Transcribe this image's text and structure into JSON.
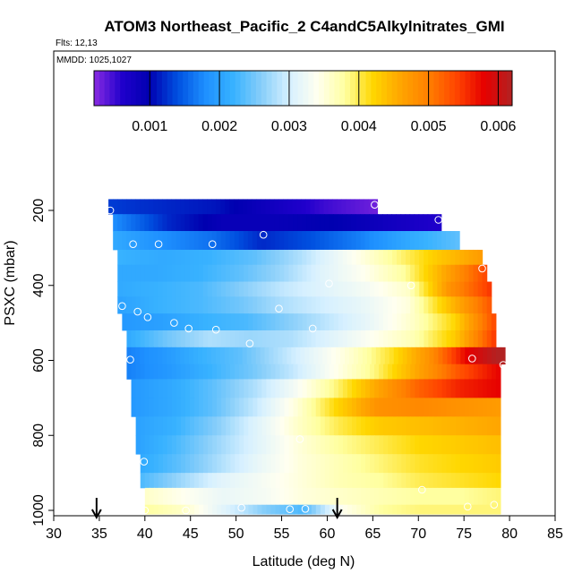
{
  "chart_data": {
    "type": "heatmap",
    "title": "ATOM3 Northeast_Pacific_2 C4andC5Alkylnitrates_GMI",
    "flights_label": "Flts: 12,13",
    "mmdd_label": "MMDD: 1025,1027",
    "xlabel": "Latitude (deg N)",
    "ylabel": "PSXC (mbar)",
    "xlim": [
      30,
      85
    ],
    "ylim": [
      1000,
      50
    ],
    "y_reversed": true,
    "x_ticks": [
      30,
      35,
      40,
      45,
      50,
      55,
      60,
      65,
      70,
      75,
      80,
      85
    ],
    "x_tick_labels": [
      "30",
      "35",
      "40",
      "45",
      "50",
      "55",
      "60",
      "65",
      "70",
      "75",
      "80",
      "85"
    ],
    "y_ticks": [
      200,
      400,
      600,
      800,
      1000
    ],
    "y_tick_labels": [
      "200",
      "400",
      "600",
      "800",
      "1000"
    ],
    "colorbar": {
      "min": 0.0002,
      "max": 0.0062,
      "ticks": [
        0.001,
        0.002,
        0.003,
        0.004,
        0.005,
        0.006
      ],
      "tick_labels": [
        "0.001",
        "0.002",
        "0.003",
        "0.004",
        "0.005",
        "0.006"
      ],
      "colors": [
        "#8a2be2",
        "#2000cc",
        "#0000b0",
        "#0050e0",
        "#1e90ff",
        "#38b2ff",
        "#87cefa",
        "#d6f0ff",
        "#fffff0",
        "#ffffa0",
        "#ffd700",
        "#ffa500",
        "#ff7f00",
        "#ff4500",
        "#e60000",
        "#b22222"
      ]
    },
    "rows": [
      {
        "p0": 170,
        "p1": 210,
        "lat0": 36,
        "lat1": 65.5,
        "values": [
          0.0013,
          0.0012,
          0.0011,
          0.0008,
          0.0005,
          0.0003
        ]
      },
      {
        "p0": 210,
        "p1": 255,
        "lat0": 36.5,
        "lat1": 72.5,
        "values": [
          0.0018,
          0.0012,
          0.0009,
          0.0009,
          0.001,
          0.0008,
          0.0006
        ]
      },
      {
        "p0": 255,
        "p1": 305,
        "lat0": 36.5,
        "lat1": 74.5,
        "values": [
          0.0021,
          0.0018,
          0.0016,
          0.0012,
          0.0014,
          0.0017,
          0.0021,
          0.0024
        ]
      },
      {
        "p0": 305,
        "p1": 345,
        "lat0": 37,
        "lat1": 77,
        "values": [
          0.0022,
          0.0021,
          0.0022,
          0.0024,
          0.0028,
          0.0033,
          0.0038,
          0.0043,
          0.0047
        ]
      },
      {
        "p0": 345,
        "p1": 390,
        "lat0": 37,
        "lat1": 77.5,
        "values": [
          0.0021,
          0.0021,
          0.0022,
          0.0024,
          0.0027,
          0.0031,
          0.0034,
          0.0038,
          0.0046,
          0.0054
        ]
      },
      {
        "p0": 390,
        "p1": 430,
        "lat0": 37,
        "lat1": 78,
        "values": [
          0.0021,
          0.0022,
          0.0023,
          0.0026,
          0.0029,
          0.0031,
          0.0033,
          0.0036,
          0.0048,
          0.0055
        ]
      },
      {
        "p0": 430,
        "p1": 475,
        "lat0": 37,
        "lat1": 78,
        "values": [
          0.002,
          0.0022,
          0.0023,
          0.0025,
          0.0028,
          0.003,
          0.0032,
          0.0035,
          0.0044,
          0.0053
        ]
      },
      {
        "p0": 475,
        "p1": 520,
        "lat0": 37.5,
        "lat1": 78.5,
        "values": [
          0.0019,
          0.002,
          0.0022,
          0.0023,
          0.0026,
          0.0029,
          0.0032,
          0.0036,
          0.0042,
          0.0054
        ]
      },
      {
        "p0": 520,
        "p1": 565,
        "lat0": 38,
        "lat1": 78.5,
        "values": [
          0.0021,
          0.0025,
          0.0028,
          0.0027,
          0.0028,
          0.0031,
          0.0034,
          0.0037,
          0.0043,
          0.0055
        ]
      },
      {
        "p0": 565,
        "p1": 610,
        "lat0": 38,
        "lat1": 79.5,
        "values": [
          0.0017,
          0.0019,
          0.0022,
          0.0024,
          0.0028,
          0.0032,
          0.0036,
          0.0041,
          0.0048,
          0.0058,
          0.0063
        ]
      },
      {
        "p0": 610,
        "p1": 650,
        "lat0": 38,
        "lat1": 79,
        "values": [
          0.0017,
          0.0019,
          0.0022,
          0.0025,
          0.0029,
          0.0034,
          0.0039,
          0.0046,
          0.0053,
          0.0058
        ]
      },
      {
        "p0": 650,
        "p1": 700,
        "lat0": 38.5,
        "lat1": 79,
        "values": [
          0.0019,
          0.0021,
          0.0024,
          0.0028,
          0.0033,
          0.0039,
          0.0046,
          0.0052,
          0.0056,
          0.0058
        ]
      },
      {
        "p0": 700,
        "p1": 750,
        "lat0": 38.5,
        "lat1": 79,
        "values": [
          0.0019,
          0.0021,
          0.0024,
          0.0029,
          0.0035,
          0.0042,
          0.0048,
          0.0049,
          0.0048,
          0.0047
        ]
      },
      {
        "p0": 750,
        "p1": 800,
        "lat0": 39,
        "lat1": 79,
        "values": [
          0.002,
          0.0022,
          0.0026,
          0.0031,
          0.0036,
          0.004,
          0.0043,
          0.0044,
          0.0045,
          0.0046
        ]
      },
      {
        "p0": 800,
        "p1": 850,
        "lat0": 39,
        "lat1": 79,
        "values": [
          0.002,
          0.0023,
          0.0027,
          0.0031,
          0.0035,
          0.0038,
          0.004,
          0.0042,
          0.0043,
          0.0044
        ]
      },
      {
        "p0": 850,
        "p1": 900,
        "lat0": 39.5,
        "lat1": 79,
        "values": [
          0.0021,
          0.0024,
          0.0028,
          0.0032,
          0.0035,
          0.0037,
          0.0039,
          0.0041,
          0.0042,
          0.0043
        ]
      },
      {
        "p0": 900,
        "p1": 940,
        "lat0": 39.5,
        "lat1": 79,
        "values": [
          0.0023,
          0.0027,
          0.0031,
          0.0033,
          0.0035,
          0.0037,
          0.0038,
          0.004,
          0.0041,
          0.0042
        ]
      },
      {
        "p0": 940,
        "p1": 985,
        "lat0": 40,
        "lat1": 79,
        "values": [
          0.0036,
          0.0034,
          0.0032,
          0.0033,
          0.0035,
          0.0036,
          0.0037,
          0.0038,
          0.0038,
          0.0039
        ]
      },
      {
        "p0": 985,
        "p1": 1010,
        "lat0": 40,
        "lat1": 79,
        "values": [
          0.0038,
          0.0036,
          0.0031,
          0.0026,
          0.0023,
          0.0034,
          0.0038,
          0.0039,
          0.0039,
          0.0039
        ]
      }
    ],
    "points": [
      [
        36.2,
        200
      ],
      [
        65.2,
        185
      ],
      [
        72.2,
        225
      ],
      [
        38.7,
        290
      ],
      [
        41.5,
        290
      ],
      [
        47.4,
        290
      ],
      [
        53,
        265
      ],
      [
        77,
        355
      ],
      [
        60.2,
        395
      ],
      [
        69.2,
        400
      ],
      [
        37.5,
        455
      ],
      [
        39.2,
        470
      ],
      [
        40.3,
        485
      ],
      [
        43.2,
        500
      ],
      [
        44.8,
        515
      ],
      [
        47.8,
        518
      ],
      [
        54.7,
        462
      ],
      [
        58.4,
        515
      ],
      [
        51.5,
        555
      ],
      [
        38.4,
        598
      ],
      [
        75.9,
        595
      ],
      [
        79.3,
        612
      ],
      [
        57,
        810
      ],
      [
        39.9,
        870
      ],
      [
        70.4,
        945
      ],
      [
        75.4,
        990
      ],
      [
        78.3,
        985
      ],
      [
        40,
        1000
      ],
      [
        44.5,
        1000
      ],
      [
        50.6,
        993
      ],
      [
        55.9,
        997
      ],
      [
        57.6,
        996
      ]
    ],
    "arrows_lat": [
      34.7,
      61.1
    ]
  }
}
